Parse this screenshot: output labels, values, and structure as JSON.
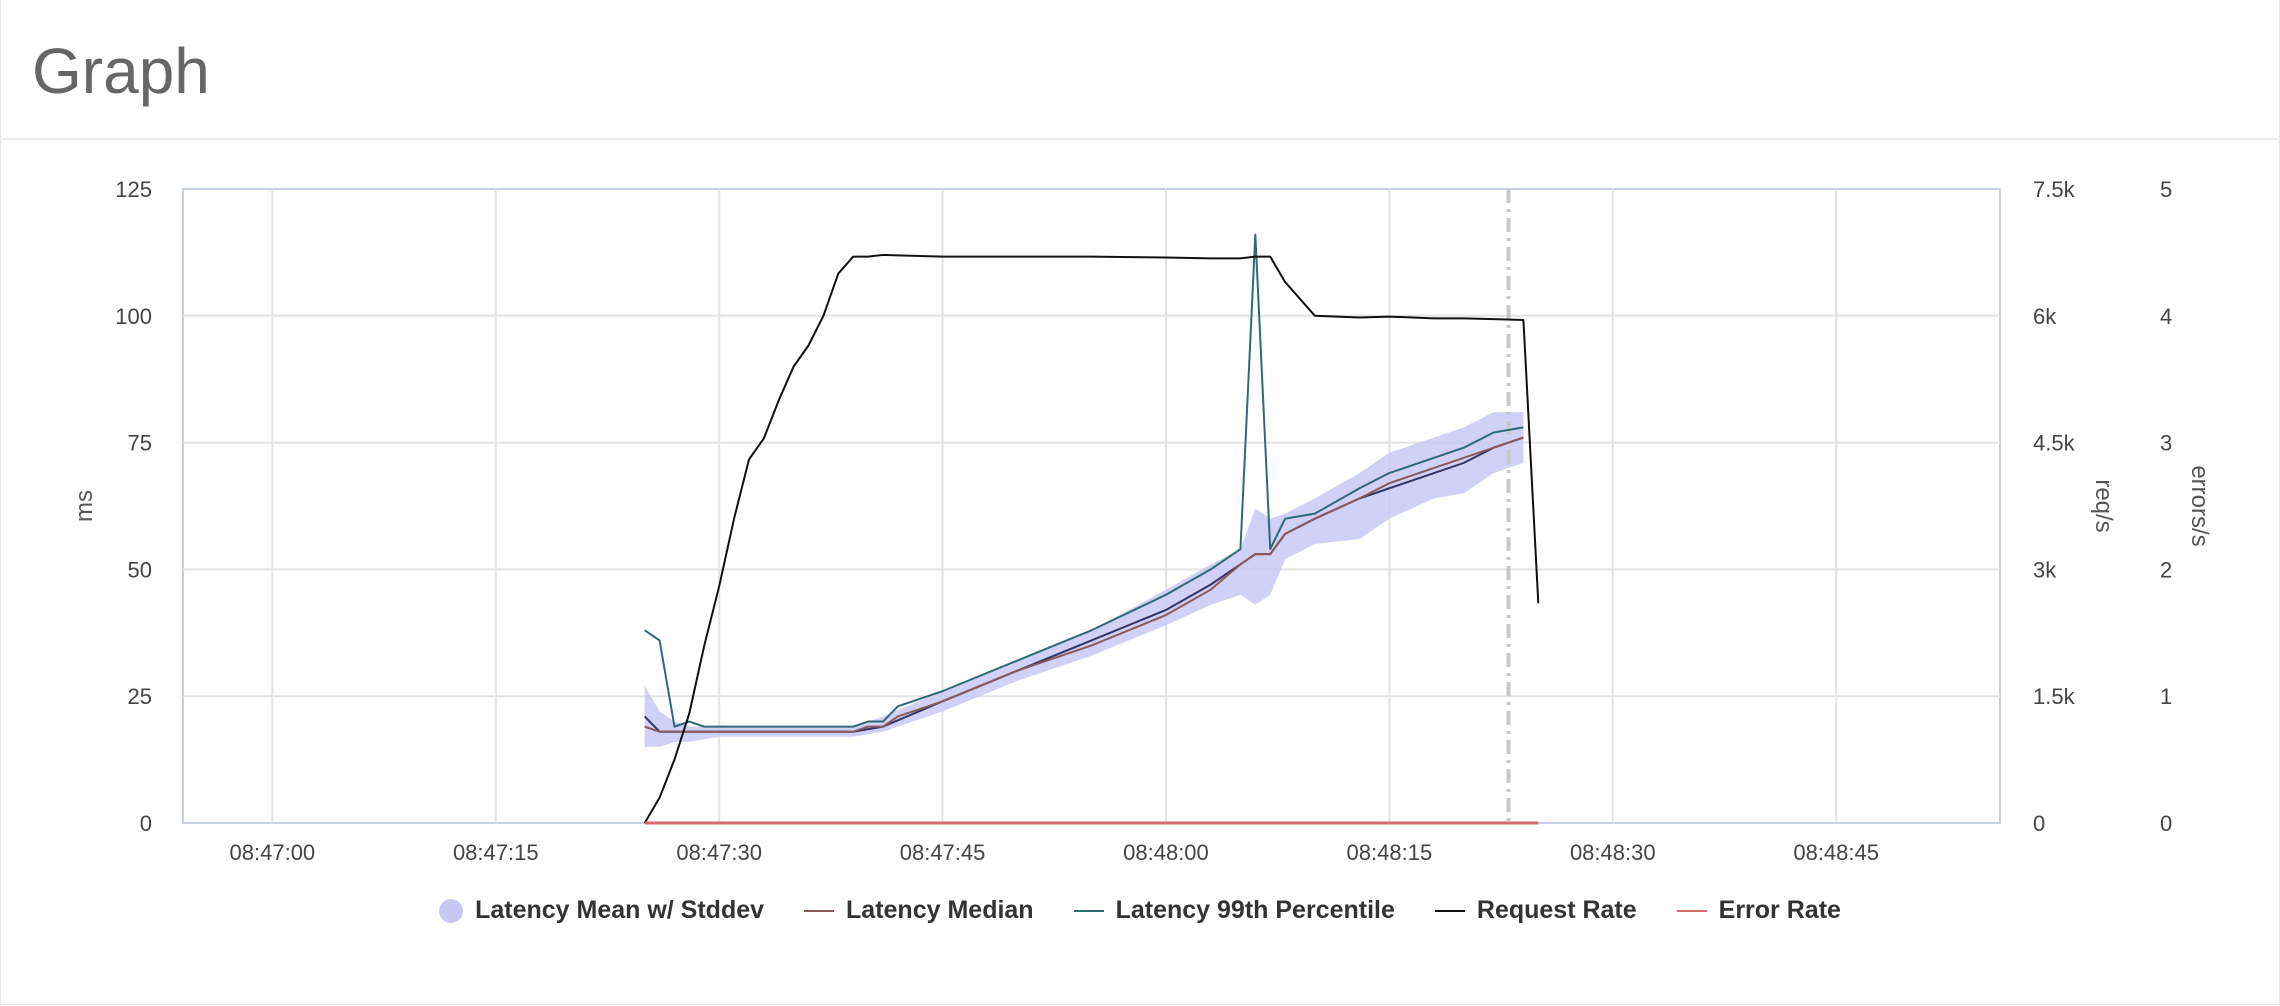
{
  "page": {
    "title": "Graph"
  },
  "colors": {
    "band": "#c9c8f5",
    "mean": "#333366",
    "median": "#8a5a5a",
    "p99": "#2e6b78",
    "request_rate": "#111111",
    "error_rate": "#d46a6a",
    "marker": "#c8c8c8"
  },
  "chart_data": {
    "type": "line",
    "title": "",
    "x_ticks": [
      "08:47:00",
      "08:47:15",
      "08:47:30",
      "08:47:45",
      "08:48:00",
      "08:48:15",
      "08:48:30",
      "08:48:45"
    ],
    "y_left": {
      "label": "ms",
      "range": [
        0,
        125
      ],
      "ticks": [
        "0",
        "25",
        "50",
        "75",
        "100",
        "125"
      ]
    },
    "y_right1": {
      "label": "req/s",
      "range": [
        0,
        7500
      ],
      "ticks": [
        "0",
        "1.5k",
        "3k",
        "4.5k",
        "6k",
        "7.5k"
      ]
    },
    "y_right2": {
      "label": "errors/s",
      "range": [
        0,
        5
      ],
      "ticks": [
        "0",
        "1",
        "2",
        "3",
        "4",
        "5"
      ]
    },
    "x_range_seconds": [
      -6,
      116
    ],
    "marker_line_seconds": 83,
    "series": [
      {
        "name": "Latency Mean w/ Stddev",
        "axis": "left",
        "kind": "band",
        "x": [
          25,
          26,
          27,
          28,
          30,
          35,
          39,
          41,
          45,
          50,
          55,
          60,
          63,
          65,
          66,
          67,
          68,
          70,
          73,
          75,
          78,
          80,
          82,
          84
        ],
        "mean": [
          21,
          18,
          18,
          18,
          18,
          18,
          18,
          19,
          24,
          30,
          36,
          42,
          47,
          51,
          53,
          53,
          57,
          60,
          64,
          66,
          69,
          71,
          74,
          76
        ],
        "lower": [
          15,
          15,
          16,
          16,
          17,
          17,
          17,
          18,
          22,
          28,
          33,
          39,
          43,
          45,
          43,
          45,
          52,
          55,
          56,
          60,
          64,
          65,
          69,
          71
        ],
        "upper": [
          27,
          22,
          20,
          19,
          19,
          19,
          19,
          21,
          26,
          32,
          38,
          46,
          51,
          54,
          62,
          60,
          61,
          64,
          69,
          73,
          76,
          78,
          81,
          81
        ]
      },
      {
        "name": "Latency Median",
        "axis": "left",
        "x": [
          25,
          26,
          27,
          28,
          30,
          35,
          39,
          40,
          41,
          42,
          45,
          50,
          55,
          60,
          63,
          65,
          66,
          67,
          68,
          70,
          73,
          75,
          78,
          80,
          82,
          84
        ],
        "y": [
          19,
          18,
          18,
          18,
          18,
          18,
          18,
          19,
          19,
          21,
          24,
          30,
          35,
          41,
          46,
          51,
          53,
          53,
          57,
          60,
          64,
          67,
          70,
          72,
          74,
          76
        ]
      },
      {
        "name": "Latency 99th Percentile",
        "axis": "left",
        "x": [
          25,
          26,
          27,
          28,
          29,
          30,
          35,
          39,
          40,
          41,
          42,
          45,
          50,
          55,
          60,
          63,
          65,
          66,
          67,
          68,
          70,
          73,
          75,
          78,
          80,
          82,
          84
        ],
        "y": [
          38,
          36,
          19,
          20,
          19,
          19,
          19,
          19,
          20,
          20,
          23,
          26,
          32,
          38,
          45,
          50,
          54,
          116,
          54,
          60,
          61,
          66,
          69,
          72,
          74,
          77,
          78
        ]
      },
      {
        "name": "Request Rate",
        "axis": "right1",
        "x": [
          25,
          26,
          27,
          28,
          29,
          30,
          31,
          32,
          33,
          34,
          35,
          36,
          37,
          38,
          39,
          40,
          41,
          45,
          50,
          55,
          60,
          63,
          65,
          66,
          67,
          68,
          70,
          73,
          75,
          78,
          80,
          82,
          84,
          85
        ],
        "y": [
          0,
          300,
          750,
          1300,
          2100,
          2800,
          3600,
          4300,
          4550,
          5000,
          5400,
          5650,
          6000,
          6500,
          6700,
          6700,
          6720,
          6700,
          6700,
          6700,
          6690,
          6680,
          6680,
          6700,
          6700,
          6400,
          6000,
          5980,
          5990,
          5970,
          5970,
          5960,
          5950,
          2600
        ]
      },
      {
        "name": "Error Rate",
        "axis": "right2",
        "x": [
          25,
          85
        ],
        "y": [
          0,
          0
        ]
      }
    ],
    "legend_position": "bottom",
    "grid": true
  }
}
